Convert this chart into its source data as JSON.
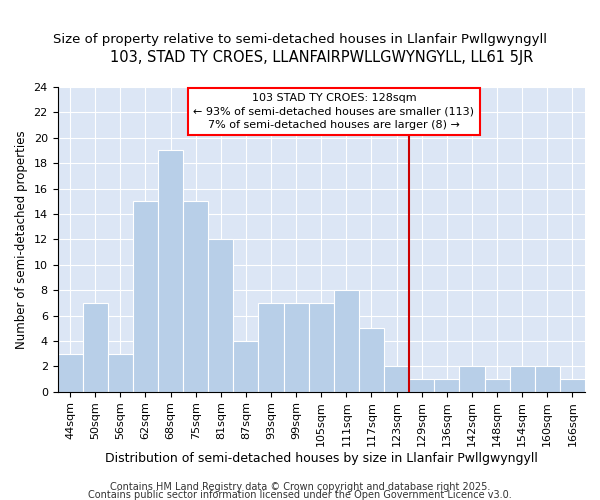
{
  "title": "103, STAD TY CROES, LLANFAIRPWLLGWYNGYLL, LL61 5JR",
  "subtitle": "Size of property relative to semi-detached houses in Llanfair Pwllgwyngyll",
  "xlabel": "Distribution of semi-detached houses by size in Llanfair Pwllgwyngyll",
  "ylabel": "Number of semi-detached properties",
  "footer_line1": "Contains HM Land Registry data © Crown copyright and database right 2025.",
  "footer_line2": "Contains public sector information licensed under the Open Government Licence v3.0.",
  "categories": [
    "44sqm",
    "50sqm",
    "56sqm",
    "62sqm",
    "68sqm",
    "75sqm",
    "81sqm",
    "87sqm",
    "93sqm",
    "99sqm",
    "105sqm",
    "111sqm",
    "117sqm",
    "123sqm",
    "129sqm",
    "136sqm",
    "142sqm",
    "148sqm",
    "154sqm",
    "160sqm",
    "166sqm"
  ],
  "values": [
    3,
    7,
    3,
    15,
    19,
    15,
    12,
    4,
    7,
    7,
    7,
    8,
    5,
    2,
    1,
    1,
    2,
    1,
    2,
    2,
    1
  ],
  "vline_index": 14,
  "annotation_line1": "103 STAD TY CROES: 128sqm",
  "annotation_line2": "← 93% of semi-detached houses are smaller (113)",
  "annotation_line3": "7% of semi-detached houses are larger (8) →",
  "ylim": [
    0,
    24
  ],
  "yticks": [
    0,
    2,
    4,
    6,
    8,
    10,
    12,
    14,
    16,
    18,
    20,
    22,
    24
  ],
  "bar_color": "#b8cfe8",
  "bg_color": "#dce6f5",
  "vline_color": "#cc0000",
  "title_fontsize": 10.5,
  "subtitle_fontsize": 9.5,
  "xlabel_fontsize": 9,
  "ylabel_fontsize": 8.5,
  "tick_fontsize": 8,
  "annotation_fontsize": 8,
  "footer_fontsize": 7
}
